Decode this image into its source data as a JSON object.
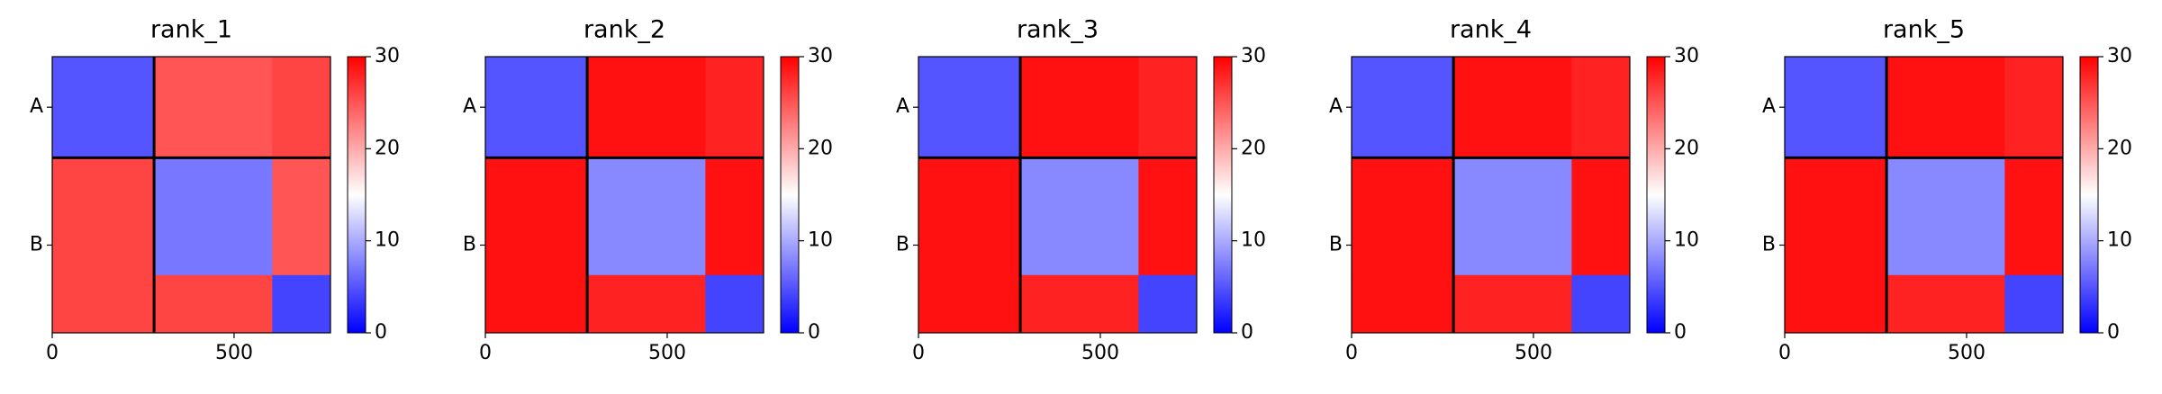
{
  "chart_data": [
    {
      "type": "heatmap",
      "title": "rank_1",
      "x_edges": [
        0,
        280,
        605,
        765
      ],
      "y_edges": [
        0,
        280,
        605,
        765
      ],
      "z": [
        [
          5,
          25,
          26
        ],
        [
          26,
          7,
          25
        ],
        [
          26,
          26,
          4
        ]
      ],
      "xlim": [
        0,
        765
      ],
      "ylim": [
        765,
        0
      ],
      "xticks": [
        0,
        500
      ],
      "yticks": [
        {
          "value": 140,
          "label": "A"
        },
        {
          "value": 522,
          "label": "B"
        }
      ],
      "chain_breaks": [
        280
      ],
      "colorbar": {
        "lim": [
          0,
          30
        ],
        "ticks": [
          0,
          10,
          20,
          30
        ],
        "colormap": [
          "#0000ff",
          "#ffffff",
          "#ff0000"
        ]
      }
    },
    {
      "type": "heatmap",
      "title": "rank_2",
      "x_edges": [
        0,
        280,
        605,
        765
      ],
      "y_edges": [
        0,
        280,
        605,
        765
      ],
      "z": [
        [
          5,
          29,
          28
        ],
        [
          29,
          8,
          29
        ],
        [
          29,
          28,
          4
        ]
      ],
      "xlim": [
        0,
        765
      ],
      "ylim": [
        765,
        0
      ],
      "xticks": [
        0,
        500
      ],
      "yticks": [
        {
          "value": 140,
          "label": "A"
        },
        {
          "value": 522,
          "label": "B"
        }
      ],
      "chain_breaks": [
        280
      ],
      "colorbar": {
        "lim": [
          0,
          30
        ],
        "ticks": [
          0,
          10,
          20,
          30
        ],
        "colormap": [
          "#0000ff",
          "#ffffff",
          "#ff0000"
        ]
      }
    },
    {
      "type": "heatmap",
      "title": "rank_3",
      "x_edges": [
        0,
        280,
        605,
        765
      ],
      "y_edges": [
        0,
        280,
        605,
        765
      ],
      "z": [
        [
          5,
          29,
          28
        ],
        [
          29,
          8,
          29
        ],
        [
          29,
          28,
          4
        ]
      ],
      "xlim": [
        0,
        765
      ],
      "ylim": [
        765,
        0
      ],
      "xticks": [
        0,
        500
      ],
      "yticks": [
        {
          "value": 140,
          "label": "A"
        },
        {
          "value": 522,
          "label": "B"
        }
      ],
      "chain_breaks": [
        280
      ],
      "colorbar": {
        "lim": [
          0,
          30
        ],
        "ticks": [
          0,
          10,
          20,
          30
        ],
        "colormap": [
          "#0000ff",
          "#ffffff",
          "#ff0000"
        ]
      }
    },
    {
      "type": "heatmap",
      "title": "rank_4",
      "x_edges": [
        0,
        280,
        605,
        765
      ],
      "y_edges": [
        0,
        280,
        605,
        765
      ],
      "z": [
        [
          5,
          29,
          28
        ],
        [
          29,
          8,
          29
        ],
        [
          29,
          28,
          4
        ]
      ],
      "xlim": [
        0,
        765
      ],
      "ylim": [
        765,
        0
      ],
      "xticks": [
        0,
        500
      ],
      "yticks": [
        {
          "value": 140,
          "label": "A"
        },
        {
          "value": 522,
          "label": "B"
        }
      ],
      "chain_breaks": [
        280
      ],
      "colorbar": {
        "lim": [
          0,
          30
        ],
        "ticks": [
          0,
          10,
          20,
          30
        ],
        "colormap": [
          "#0000ff",
          "#ffffff",
          "#ff0000"
        ]
      }
    },
    {
      "type": "heatmap",
      "title": "rank_5",
      "x_edges": [
        0,
        280,
        605,
        765
      ],
      "y_edges": [
        0,
        280,
        605,
        765
      ],
      "z": [
        [
          5,
          29,
          28
        ],
        [
          29,
          8,
          29
        ],
        [
          29,
          28,
          4
        ]
      ],
      "xlim": [
        0,
        765
      ],
      "ylim": [
        765,
        0
      ],
      "xticks": [
        0,
        500
      ],
      "yticks": [
        {
          "value": 140,
          "label": "A"
        },
        {
          "value": 522,
          "label": "B"
        }
      ],
      "chain_breaks": [
        280
      ],
      "colorbar": {
        "lim": [
          0,
          30
        ],
        "ticks": [
          0,
          10,
          20,
          30
        ],
        "colormap": [
          "#0000ff",
          "#ffffff",
          "#ff0000"
        ]
      }
    }
  ]
}
